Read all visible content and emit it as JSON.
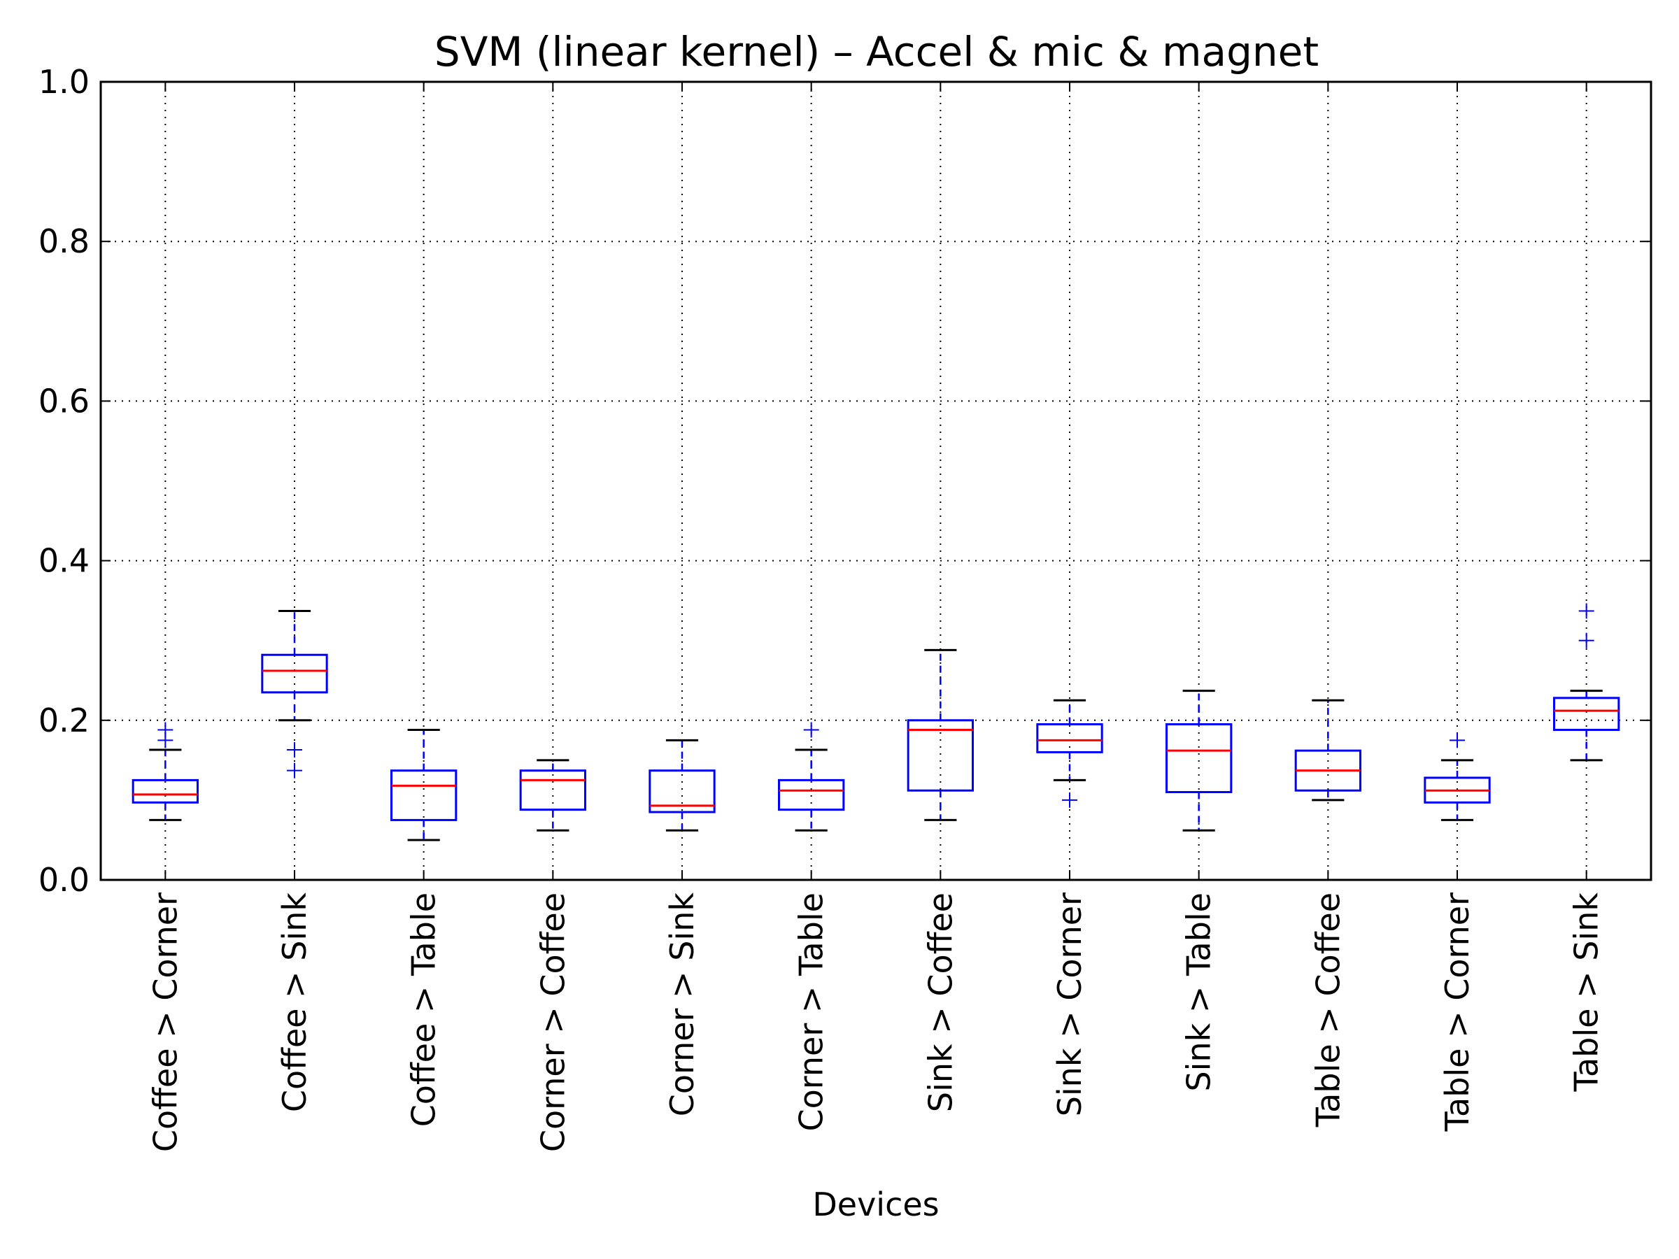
{
  "chart_data": {
    "type": "box",
    "title": "SVM (linear kernel) – Accel & mic & magnet",
    "xlabel": "Devices",
    "ylabel": "",
    "ylim": [
      0,
      1.0
    ],
    "yticks": [
      "0.0",
      "0.2",
      "0.4",
      "0.6",
      "0.8",
      "1.0"
    ],
    "grid": true,
    "categories": [
      "Coffee > Corner",
      "Coffee > Sink",
      "Coffee > Table",
      "Corner > Coffee",
      "Corner > Sink",
      "Corner > Table",
      "Sink > Coffee",
      "Sink > Corner",
      "Sink > Table",
      "Table > Coffee",
      "Table > Corner",
      "Table > Sink"
    ],
    "boxes": [
      {
        "whisker_low": 0.075,
        "q1": 0.097,
        "median": 0.107,
        "q3": 0.125,
        "whisker_high": 0.163,
        "outliers": [
          0.175,
          0.188
        ]
      },
      {
        "whisker_low": 0.2,
        "q1": 0.235,
        "median": 0.262,
        "q3": 0.282,
        "whisker_high": 0.337,
        "outliers": [
          0.137,
          0.163
        ]
      },
      {
        "whisker_low": 0.05,
        "q1": 0.075,
        "median": 0.118,
        "q3": 0.137,
        "whisker_high": 0.188,
        "outliers": []
      },
      {
        "whisker_low": 0.062,
        "q1": 0.088,
        "median": 0.125,
        "q3": 0.137,
        "whisker_high": 0.15,
        "outliers": []
      },
      {
        "whisker_low": 0.062,
        "q1": 0.085,
        "median": 0.093,
        "q3": 0.137,
        "whisker_high": 0.175,
        "outliers": []
      },
      {
        "whisker_low": 0.062,
        "q1": 0.088,
        "median": 0.112,
        "q3": 0.125,
        "whisker_high": 0.163,
        "outliers": [
          0.188
        ]
      },
      {
        "whisker_low": 0.075,
        "q1": 0.112,
        "median": 0.188,
        "q3": 0.2,
        "whisker_high": 0.288,
        "outliers": []
      },
      {
        "whisker_low": 0.125,
        "q1": 0.16,
        "median": 0.175,
        "q3": 0.195,
        "whisker_high": 0.225,
        "outliers": [
          0.1
        ]
      },
      {
        "whisker_low": 0.062,
        "q1": 0.11,
        "median": 0.162,
        "q3": 0.195,
        "whisker_high": 0.237,
        "outliers": []
      },
      {
        "whisker_low": 0.1,
        "q1": 0.112,
        "median": 0.137,
        "q3": 0.162,
        "whisker_high": 0.225,
        "outliers": []
      },
      {
        "whisker_low": 0.075,
        "q1": 0.097,
        "median": 0.112,
        "q3": 0.128,
        "whisker_high": 0.15,
        "outliers": [
          0.175
        ]
      },
      {
        "whisker_low": 0.15,
        "q1": 0.188,
        "median": 0.212,
        "q3": 0.228,
        "whisker_high": 0.237,
        "outliers": [
          0.3,
          0.337
        ]
      }
    ],
    "colors": {
      "box": "#0000ff",
      "median": "#ff0000",
      "whisker_cap": "#000000",
      "outlier": "#0000ff",
      "grid": "#000000",
      "axes": "#000000"
    }
  }
}
